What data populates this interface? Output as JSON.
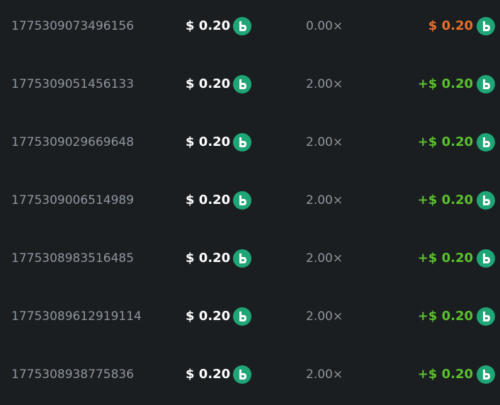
{
  "table": {
    "rows": [
      {
        "id": "1775309073496156",
        "bet": "$ 0.20",
        "multiplier": "0.00×",
        "payout": "$ 0.20",
        "payout_color": "#e8702a"
      },
      {
        "id": "1775309051456133",
        "bet": "$ 0.20",
        "multiplier": "2.00×",
        "payout": "+$ 0.20",
        "payout_color": "#5bc22d"
      },
      {
        "id": "1775309029669648",
        "bet": "$ 0.20",
        "multiplier": "2.00×",
        "payout": "+$ 0.20",
        "payout_color": "#5bc22d"
      },
      {
        "id": "1775309006514989",
        "bet": "$ 0.20",
        "multiplier": "2.00×",
        "payout": "+$ 0.20",
        "payout_color": "#5bc22d"
      },
      {
        "id": "1775308983516485",
        "bet": "$ 0.20",
        "multiplier": "2.00×",
        "payout": "+$ 0.20",
        "payout_color": "#5bc22d"
      },
      {
        "id": "17753089612919114",
        "bet": "$ 0.20",
        "multiplier": "2.00×",
        "payout": "+$ 0.20",
        "payout_color": "#5bc22d"
      },
      {
        "id": "1775308938775836",
        "bet": "$ 0.20",
        "multiplier": "2.00×",
        "payout": "+$ 0.20",
        "payout_color": "#5bc22d"
      }
    ]
  }
}
